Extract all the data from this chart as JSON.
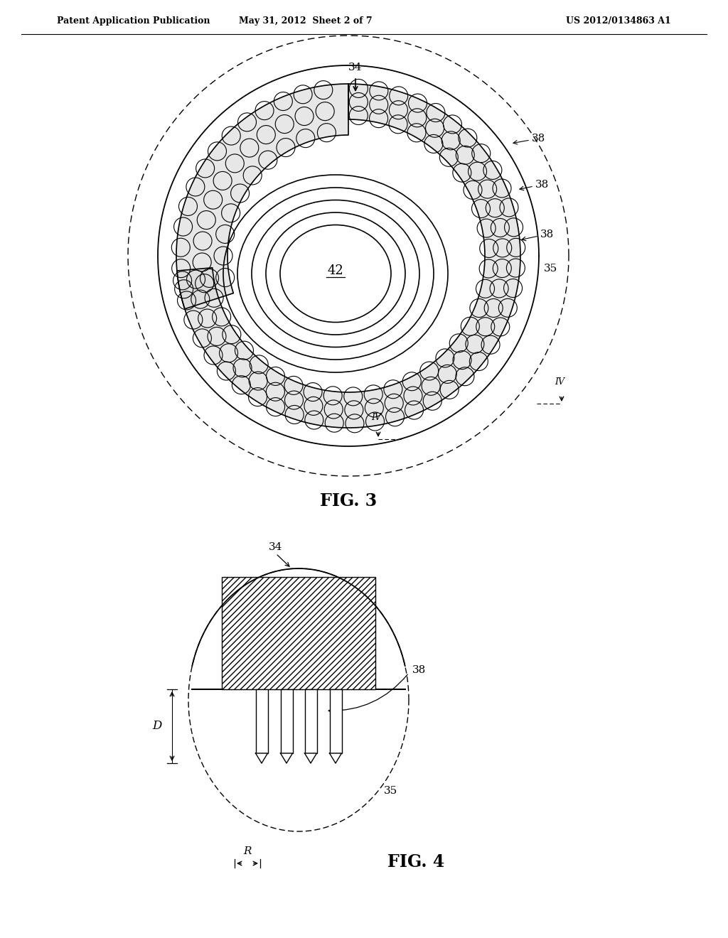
{
  "bg_color": "#ffffff",
  "line_color": "#000000",
  "header_left": "Patent Application Publication",
  "header_mid": "May 31, 2012  Sheet 2 of 7",
  "header_right": "US 2012/0134863 A1",
  "fig3_label": "FIG. 3",
  "fig4_label": "FIG. 4",
  "label_34": "34",
  "label_38a": "38",
  "label_38b": "38",
  "label_38c": "38",
  "label_35": "35",
  "label_42": "42",
  "label_IV_a": "IV",
  "label_IV_b": "IV",
  "label_D": "D",
  "label_R": "R",
  "label_34_fig4": "34",
  "label_38_fig4": "38",
  "label_35_fig4": "35"
}
